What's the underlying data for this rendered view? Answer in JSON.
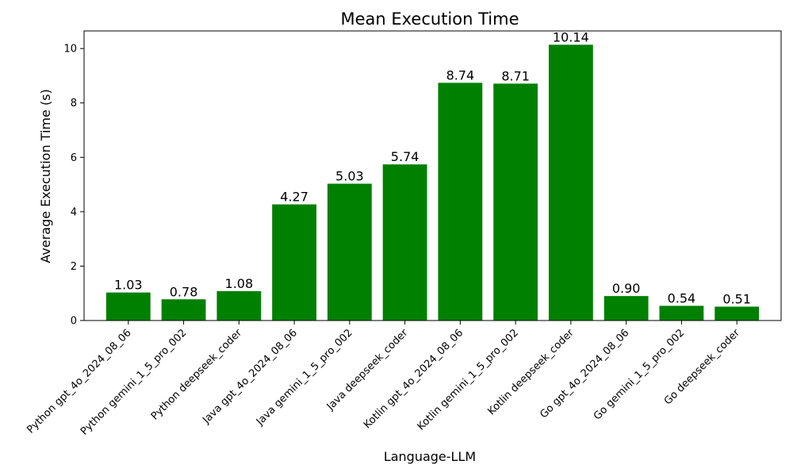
{
  "chart_data": {
    "type": "bar",
    "title": "Mean Execution Time",
    "xlabel": "Language-LLM",
    "ylabel": "Average Execution Time (s)",
    "categories": [
      "Python gpt_4o_2024_08_06",
      "Python gemini_1_5_pro_002",
      "Python deepseek_coder",
      "Java gpt_4o_2024_08_06",
      "Java gemini_1_5_pro_002",
      "Java deepseek_coder",
      "Kotlin gpt_4o_2024_08_06",
      "Kotlin gemini_1_5_pro_002",
      "Kotlin deepseek_coder",
      "Go gpt_4o_2024_08_06",
      "Go gemini_1_5_pro_002",
      "Go deepseek_coder"
    ],
    "values": [
      1.03,
      0.78,
      1.08,
      4.27,
      5.03,
      5.74,
      8.74,
      8.71,
      10.14,
      0.9,
      0.54,
      0.51
    ],
    "data_labels": [
      "1.03",
      "0.78",
      "1.08",
      "4.27",
      "5.03",
      "5.74",
      "8.74",
      "8.71",
      "10.14",
      "0.90",
      "0.54",
      "0.51"
    ],
    "yticks": [
      0,
      2,
      4,
      6,
      8,
      10
    ],
    "ylim": [
      0,
      10.647
    ],
    "bar_color": "#008000",
    "grid": false,
    "legend": "none"
  }
}
